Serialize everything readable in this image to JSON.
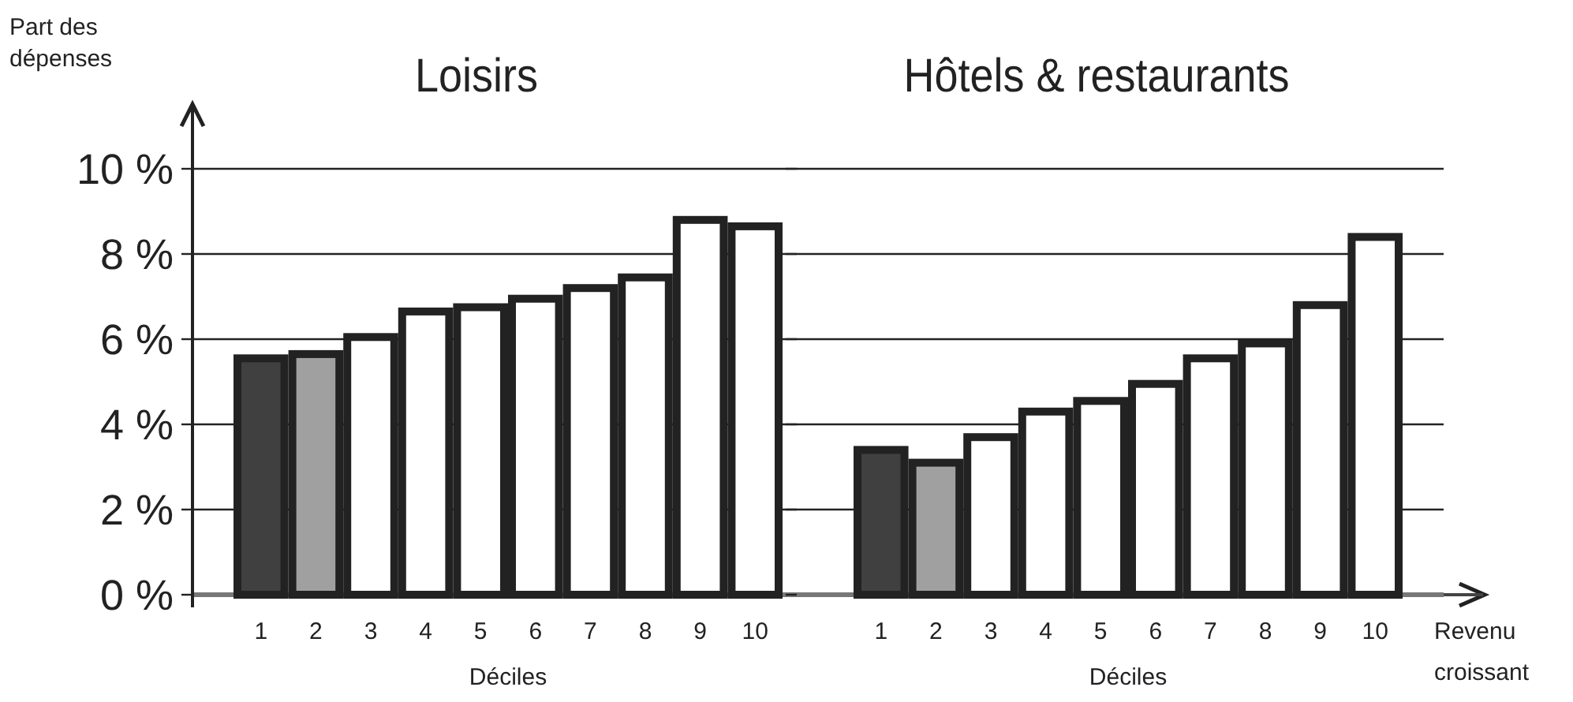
{
  "chart_data": [
    {
      "type": "bar",
      "title": "Loisirs",
      "ylabel": "Part des dépenses",
      "xlabel": "Déciles",
      "categories": [
        "1",
        "2",
        "3",
        "4",
        "5",
        "6",
        "7",
        "8",
        "9",
        "10"
      ],
      "values": [
        5.55,
        5.65,
        6.05,
        6.65,
        6.75,
        6.95,
        7.2,
        7.45,
        8.8,
        8.65
      ],
      "colors": [
        "#404040",
        "#a0a0a0",
        "#ffffff",
        "#ffffff",
        "#ffffff",
        "#ffffff",
        "#ffffff",
        "#ffffff",
        "#ffffff",
        "#ffffff"
      ],
      "ylim": [
        0,
        10
      ],
      "yticks": [
        {
          "value": 0,
          "label": "0 %"
        },
        {
          "value": 2,
          "label": "2 %"
        },
        {
          "value": 4,
          "label": "4 %"
        },
        {
          "value": 6,
          "label": "6 %"
        },
        {
          "value": 8,
          "label": "8 %"
        },
        {
          "value": 10,
          "label": "10 %"
        }
      ],
      "grid": "y"
    },
    {
      "type": "bar",
      "title": "Hôtels & restaurants",
      "xlabel": "Déciles",
      "categories": [
        "1",
        "2",
        "3",
        "4",
        "5",
        "6",
        "7",
        "8",
        "9",
        "10"
      ],
      "values": [
        3.4,
        3.1,
        3.7,
        4.3,
        4.55,
        4.95,
        5.55,
        5.9,
        6.8,
        8.4
      ],
      "colors": [
        "#404040",
        "#a0a0a0",
        "#ffffff",
        "#ffffff",
        "#ffffff",
        "#ffffff",
        "#ffffff",
        "#ffffff",
        "#ffffff",
        "#ffffff"
      ],
      "ylim": [
        0,
        10
      ],
      "yticks": [
        {
          "value": 0,
          "label": null
        },
        {
          "value": 2,
          "label": null
        },
        {
          "value": 4,
          "label": null
        },
        {
          "value": 6,
          "label": null
        },
        {
          "value": 8,
          "label": null
        },
        {
          "value": 10,
          "label": null
        }
      ],
      "grid": "y",
      "tick_labels": "x",
      "annotations": [
        "Revenu croissant"
      ]
    }
  ]
}
